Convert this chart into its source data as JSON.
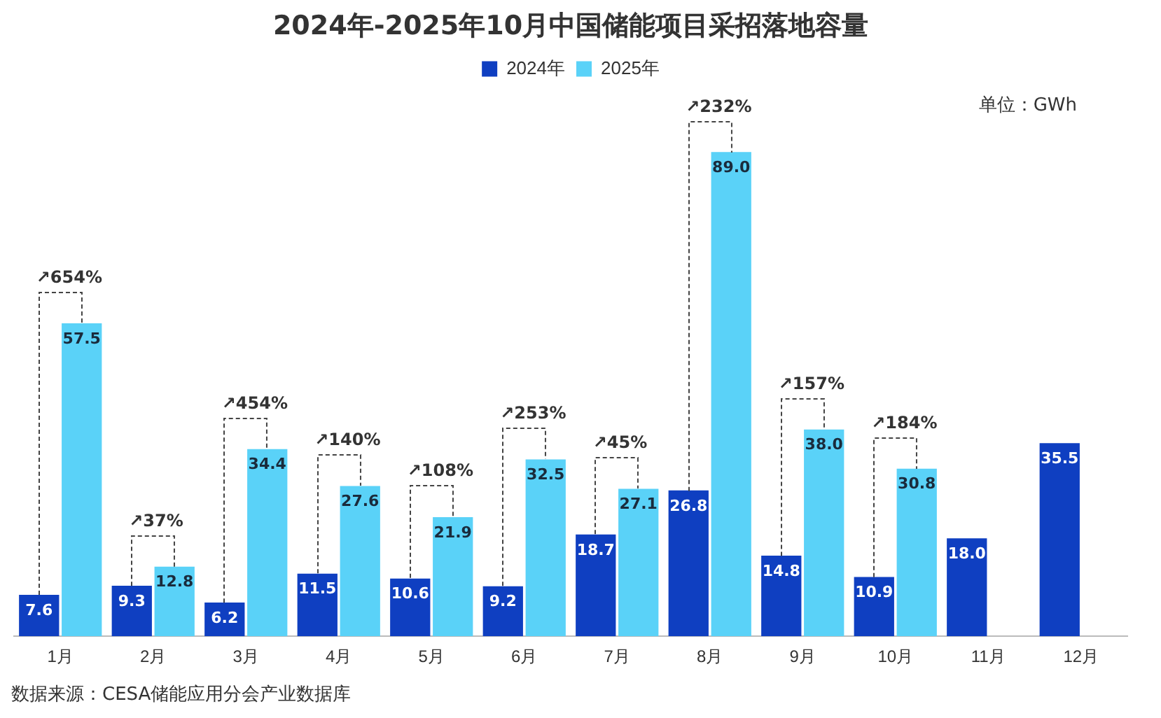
{
  "chart_data": {
    "type": "bar",
    "title": "2024年-2025年10月中国储能项目采招落地容量",
    "categories": [
      "1月",
      "2月",
      "3月",
      "4月",
      "5月",
      "6月",
      "7月",
      "8月",
      "9月",
      "10月",
      "11月",
      "12月"
    ],
    "series": [
      {
        "name": "2024年",
        "color": "#0f3fc1",
        "values": [
          7.6,
          9.3,
          6.2,
          11.5,
          10.6,
          9.2,
          18.7,
          26.8,
          14.8,
          10.9,
          18.0,
          35.5
        ],
        "value_labels": [
          "7.6",
          "9.3",
          "6.2",
          "11.5",
          "10.6",
          "9.2",
          "18.7",
          "26.8",
          "14.8",
          "10.9",
          "18.0",
          "35.5"
        ]
      },
      {
        "name": "2025年",
        "color": "#5ad2f8",
        "values": [
          57.5,
          12.8,
          34.4,
          27.6,
          21.9,
          32.5,
          27.1,
          89.0,
          38.0,
          30.8,
          null,
          null
        ],
        "value_labels": [
          "57.5",
          "12.8",
          "34.4",
          "27.6",
          "21.9",
          "32.5",
          "27.1",
          "89.0",
          "38.0",
          "30.8",
          null,
          null
        ]
      }
    ],
    "legend": "top",
    "grid": false,
    "annotations": [
      "单位：GWh",
      "数据来源：CESA储能应用分会产业数据库",
      {
        "text": "↗654%",
        "x": "1月",
        "y": 57.5
      },
      {
        "text": "↗37%",
        "x": "2月",
        "y": 12.8
      },
      {
        "text": "↗454%",
        "x": "3月",
        "y": 34.4
      },
      {
        "text": "↗140%",
        "x": "4月",
        "y": 27.6
      },
      {
        "text": "↗108%",
        "x": "5月",
        "y": 21.9
      },
      {
        "text": "↗253%",
        "x": "6月",
        "y": 32.5
      },
      {
        "text": "↗45%",
        "x": "7月",
        "y": 27.1
      },
      {
        "text": "↗232%",
        "x": "8月",
        "y": 89.0
      },
      {
        "text": "↗157%",
        "x": "9月",
        "y": 38.0
      },
      {
        "text": "↗184%",
        "x": "10月",
        "y": 30.8
      }
    ]
  }
}
